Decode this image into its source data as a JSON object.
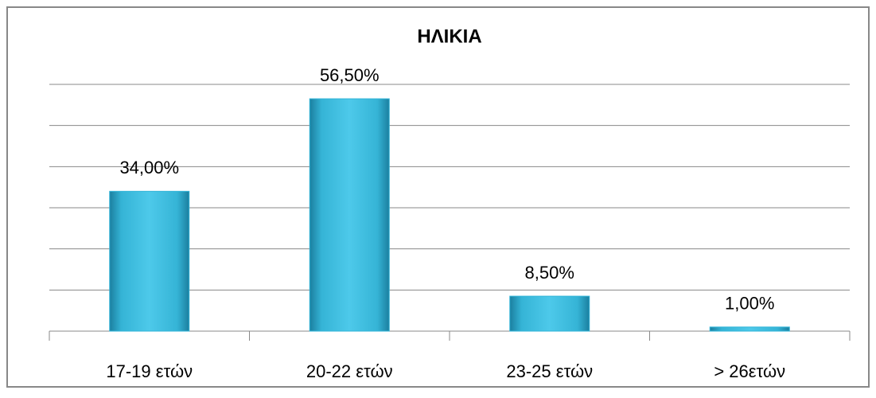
{
  "chart_data": {
    "type": "bar",
    "title": "ΗΛΙΚΙΑ",
    "categories": [
      "17-19 ετών",
      "20-22 ετών",
      "23-25 ετών",
      "> 26ετών"
    ],
    "values": [
      34,
      56.5,
      8.5,
      1
    ],
    "value_labels": [
      "34,00%",
      "56,50%",
      "8,50%",
      "1,00%"
    ],
    "color": "#31b4d8",
    "ylim": [
      0,
      60
    ],
    "yticks": [
      0,
      10,
      20,
      30,
      40,
      50,
      60
    ],
    "grid": true
  }
}
